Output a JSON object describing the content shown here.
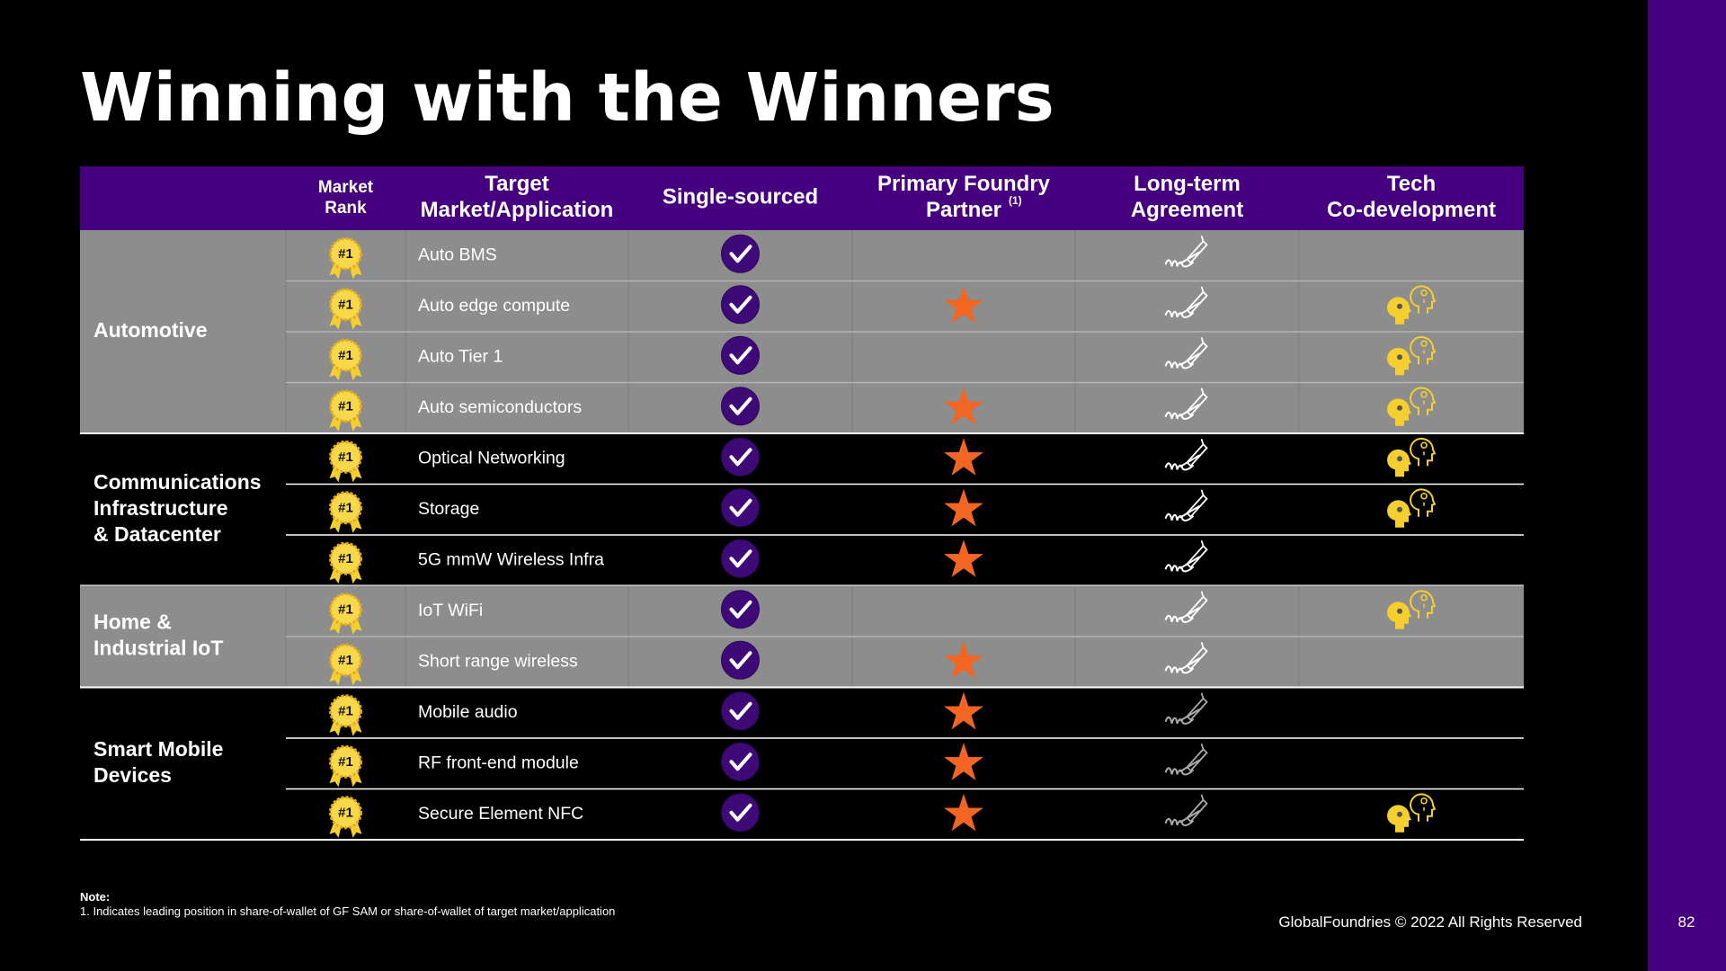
{
  "title": "Winning with the Winners",
  "table": {
    "headers": {
      "market_rank": [
        "Market",
        "Rank"
      ],
      "target": [
        "Target",
        "Market/Application"
      ],
      "single_sourced": [
        "Single-sourced"
      ],
      "primary_foundry": [
        "Primary Foundry",
        "Partner"
      ],
      "primary_foundry_note": "(1)",
      "long_term_agreement": [
        "Long-term",
        "Agreement"
      ],
      "tech_codev": [
        "Tech",
        "Co-development"
      ]
    },
    "groups": [
      {
        "name": [
          "Automotive"
        ],
        "shaded": true,
        "rows": [
          {
            "rank": "#1",
            "application": "Auto BMS",
            "single_sourced": true,
            "primary_foundry": false,
            "long_term_agreement": true,
            "tech_codev": false
          },
          {
            "rank": "#1",
            "application": "Auto edge compute",
            "single_sourced": true,
            "primary_foundry": true,
            "long_term_agreement": true,
            "tech_codev": true
          },
          {
            "rank": "#1",
            "application": "Auto Tier 1",
            "single_sourced": true,
            "primary_foundry": false,
            "long_term_agreement": true,
            "tech_codev": true
          },
          {
            "rank": "#1",
            "application": "Auto semiconductors",
            "single_sourced": true,
            "primary_foundry": true,
            "long_term_agreement": true,
            "tech_codev": true
          }
        ]
      },
      {
        "name": [
          "Communications",
          "Infrastructure",
          "& Datacenter"
        ],
        "shaded": false,
        "rows": [
          {
            "rank": "#1",
            "application": "Optical Networking",
            "single_sourced": true,
            "primary_foundry": true,
            "long_term_agreement": true,
            "tech_codev": true
          },
          {
            "rank": "#1",
            "application": "Storage",
            "single_sourced": true,
            "primary_foundry": true,
            "long_term_agreement": true,
            "tech_codev": true
          },
          {
            "rank": "#1",
            "application": "5G mmW Wireless Infra",
            "single_sourced": true,
            "primary_foundry": true,
            "long_term_agreement": true,
            "tech_codev": false
          }
        ]
      },
      {
        "name": [
          "Home &",
          "Industrial IoT"
        ],
        "shaded": true,
        "rows": [
          {
            "rank": "#1",
            "application": "IoT WiFi",
            "single_sourced": true,
            "primary_foundry": false,
            "long_term_agreement": true,
            "tech_codev": true
          },
          {
            "rank": "#1",
            "application": "Short range wireless",
            "single_sourced": true,
            "primary_foundry": true,
            "long_term_agreement": true,
            "tech_codev": false
          }
        ]
      },
      {
        "name": [
          "Smart Mobile",
          "Devices"
        ],
        "shaded": false,
        "rows": [
          {
            "rank": "#1",
            "application": "Mobile audio",
            "single_sourced": true,
            "primary_foundry": true,
            "long_term_agreement": true,
            "tech_codev": false
          },
          {
            "rank": "#1",
            "application": "RF front-end module",
            "single_sourced": true,
            "primary_foundry": true,
            "long_term_agreement": true,
            "tech_codev": false
          },
          {
            "rank": "#1",
            "application": "Secure Element NFC",
            "single_sourced": true,
            "primary_foundry": true,
            "long_term_agreement": true,
            "tech_codev": true
          }
        ]
      }
    ]
  },
  "note": {
    "heading": "Note:",
    "text": "1. Indicates leading position in share-of-wallet of GF SAM or share-of-wallet of target market/application"
  },
  "footer": "GlobalFoundries © 2022 All Rights Reserved",
  "page_number": "82"
}
